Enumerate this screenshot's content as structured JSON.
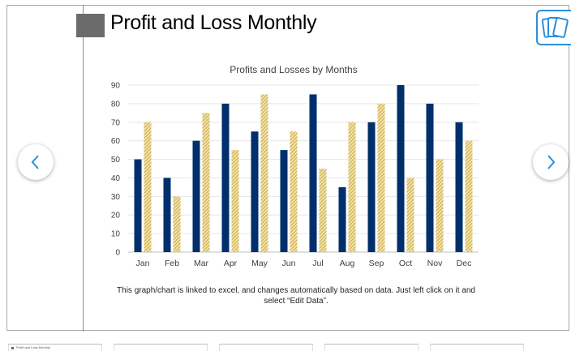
{
  "slide": {
    "title": "Profit and Loss Monthly",
    "caption": "This graph/chart is linked to excel, and changes automatically based on data. Just left click on it and select “Edit Data”.",
    "accent_color": "#6b6b6b"
  },
  "controls": {
    "prev_icon": "chevron-left-icon",
    "next_icon": "chevron-right-icon",
    "cards_icon": "cards-icon",
    "icon_color": "#2b8fd6"
  },
  "thumbnails": [
    {
      "label": "Profit and Loss Monthly"
    },
    {
      "label": ""
    },
    {
      "label": ""
    },
    {
      "label": ""
    },
    {
      "label": ""
    }
  ],
  "chart_data": {
    "type": "bar",
    "title": "Profits and Losses by Months",
    "xlabel": "",
    "ylabel": "",
    "categories": [
      "Jan",
      "Feb",
      "Mar",
      "Apr",
      "May",
      "Jun",
      "Jul",
      "Aug",
      "Sep",
      "Oct",
      "Nov",
      "Dec"
    ],
    "ylim": [
      0,
      90
    ],
    "yticks": [
      0,
      10,
      20,
      30,
      40,
      50,
      60,
      70,
      80,
      90
    ],
    "grid": true,
    "legend": "none",
    "series": [
      {
        "values": [
          50,
          40,
          60,
          80,
          65,
          55,
          85,
          35,
          70,
          90,
          80,
          70
        ],
        "color": "#002f6c",
        "pattern": "solid"
      },
      {
        "values": [
          70,
          30,
          75,
          55,
          85,
          65,
          45,
          70,
          80,
          40,
          50,
          60
        ],
        "color": "#d4b85e",
        "pattern": "hatched"
      }
    ]
  }
}
